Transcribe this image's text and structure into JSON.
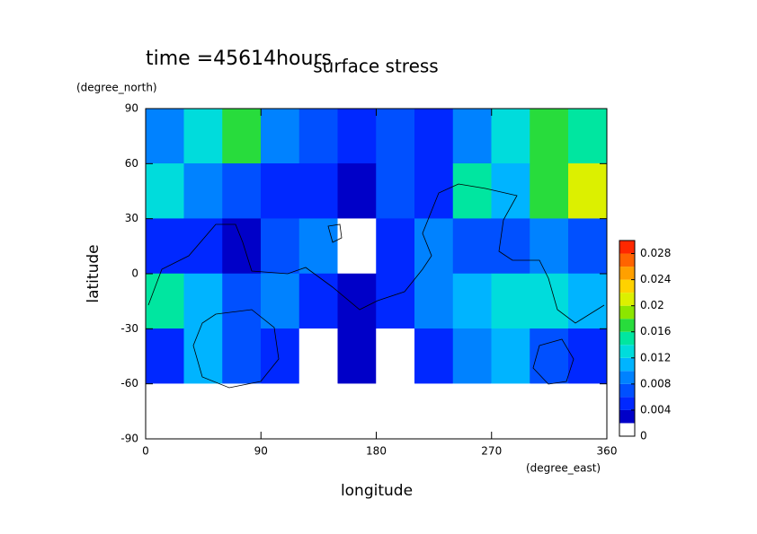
{
  "chart_data": {
    "type": "contour",
    "title": "surface stress",
    "subtitle": "time =45614hours",
    "xlabel": "longitude",
    "ylabel": "latitude",
    "xunit": "(degree_east)",
    "yunit": "(degree_north)",
    "xlim": [
      0,
      360
    ],
    "xticks": [
      0,
      90,
      180,
      270,
      360
    ],
    "ylim": [
      -90,
      90
    ],
    "yticks": [
      -90,
      -60,
      -30,
      0,
      30,
      60,
      90
    ],
    "lon_bins": [
      0,
      30,
      60,
      90,
      120,
      150,
      180,
      210,
      240,
      270,
      300,
      330,
      360
    ],
    "lat_bins": [
      90,
      60,
      30,
      0,
      -30,
      -60,
      -90
    ],
    "values": [
      [
        0.008,
        0.012,
        0.016,
        0.008,
        0.006,
        0.004,
        0.006,
        0.004,
        0.008,
        0.012,
        0.016,
        0.014
      ],
      [
        0.012,
        0.008,
        0.006,
        0.004,
        0.004,
        0.002,
        0.006,
        0.004,
        0.014,
        0.01,
        0.016,
        0.02
      ],
      [
        0.004,
        0.004,
        0.002,
        0.006,
        0.008,
        0.001,
        0.004,
        0.008,
        0.006,
        0.006,
        0.008,
        0.006
      ],
      [
        0.014,
        0.01,
        0.006,
        0.008,
        0.004,
        0.002,
        0.004,
        0.008,
        0.01,
        0.012,
        0.012,
        0.01
      ],
      [
        0.004,
        0.01,
        0.006,
        0.004,
        0.001,
        0.002,
        0.001,
        0.004,
        0.008,
        0.01,
        0.006,
        0.004
      ],
      [
        0,
        0,
        0,
        0,
        0,
        0,
        0,
        0,
        0,
        0,
        0,
        0
      ]
    ],
    "levels": [
      0,
      0.002,
      0.004,
      0.006,
      0.008,
      0.01,
      0.012,
      0.014,
      0.016,
      0.018,
      0.02,
      0.022,
      0.024,
      0.026,
      0.028,
      0.03
    ],
    "colors": [
      "#ffffff",
      "#0000c8",
      "#0028ff",
      "#0050ff",
      "#0082ff",
      "#00b4ff",
      "#00dcdc",
      "#00e6a0",
      "#28dc3c",
      "#8ce600",
      "#dcf000",
      "#ffd200",
      "#ffa000",
      "#ff6400",
      "#ff2800"
    ],
    "cblim": [
      0,
      0.03
    ],
    "cbticks": [
      0,
      0.004,
      0.008,
      0.012,
      0.016,
      0.02,
      0.024,
      0.028
    ]
  }
}
